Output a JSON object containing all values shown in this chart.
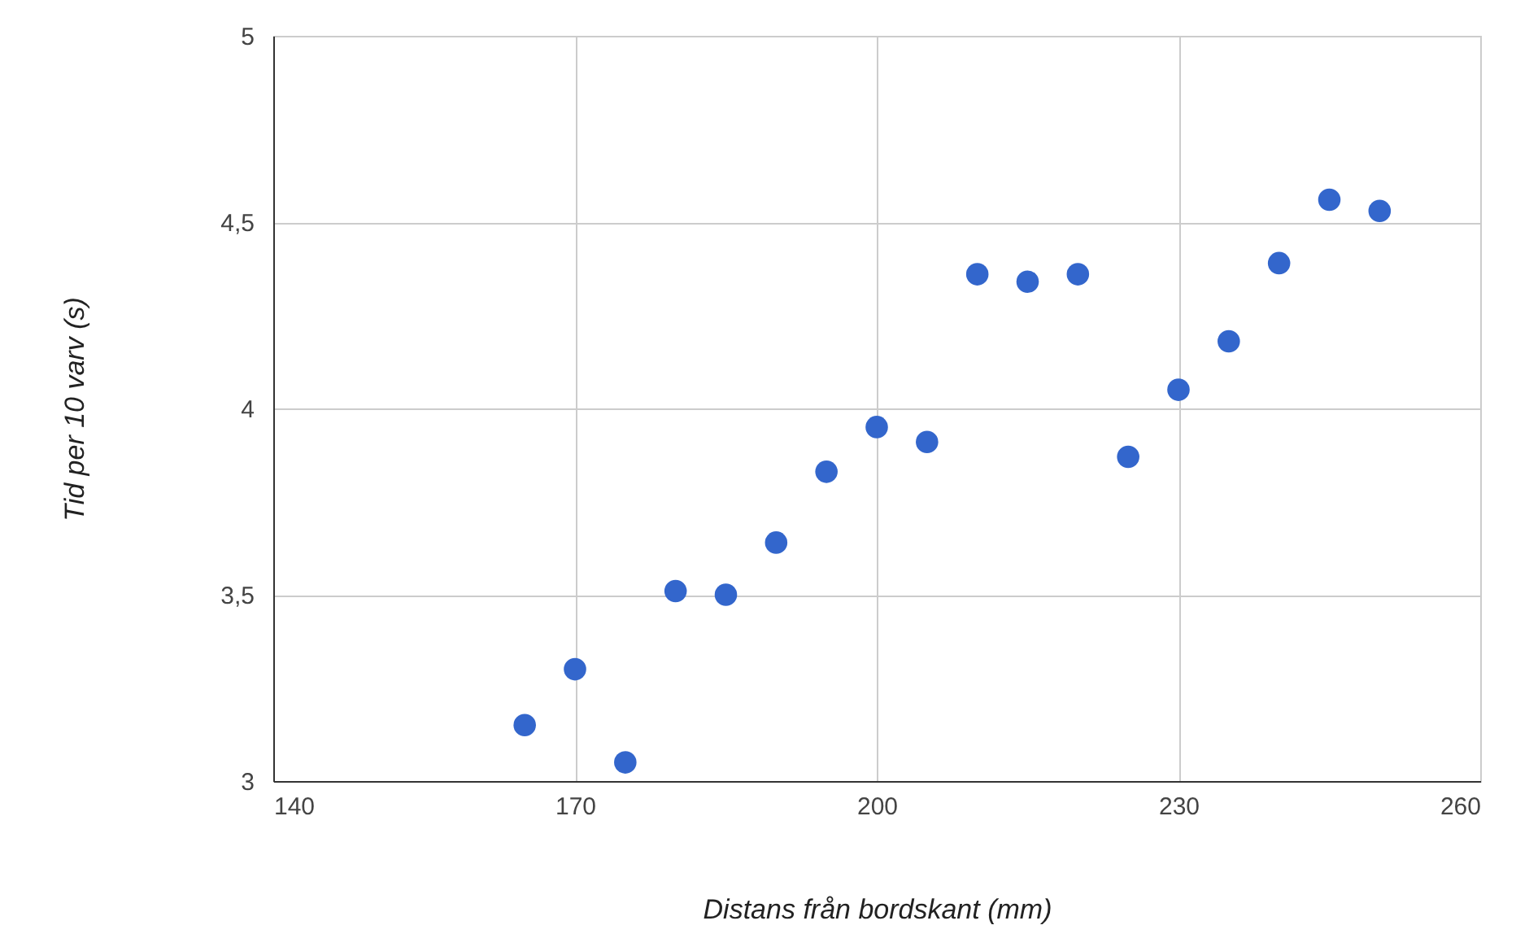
{
  "chart_data": {
    "type": "scatter",
    "xlabel": "Distans från bordskant (mm)",
    "ylabel": "Tid per 10 varv (s)",
    "x": [
      165,
      170,
      175,
      180,
      185,
      190,
      195,
      200,
      205,
      210,
      215,
      220,
      225,
      230,
      235,
      240,
      245,
      250
    ],
    "series": [
      {
        "color": "#3366cc",
        "values": [
          3.15,
          3.3,
          3.05,
          3.51,
          3.5,
          3.64,
          3.83,
          3.95,
          3.91,
          4.36,
          4.34,
          4.36,
          3.87,
          4.05,
          4.18,
          4.39,
          4.56,
          4.53
        ]
      }
    ],
    "xlim": [
      140,
      260
    ],
    "xticks": [
      140,
      170,
      200,
      230,
      260
    ],
    "ylim": [
      3,
      5
    ],
    "yticks": [
      3,
      {
        "value": 3.5,
        "label": "3,5"
      },
      4,
      {
        "value": 4.5,
        "label": "4,5"
      },
      5
    ],
    "grid": true,
    "marker": "circle"
  }
}
